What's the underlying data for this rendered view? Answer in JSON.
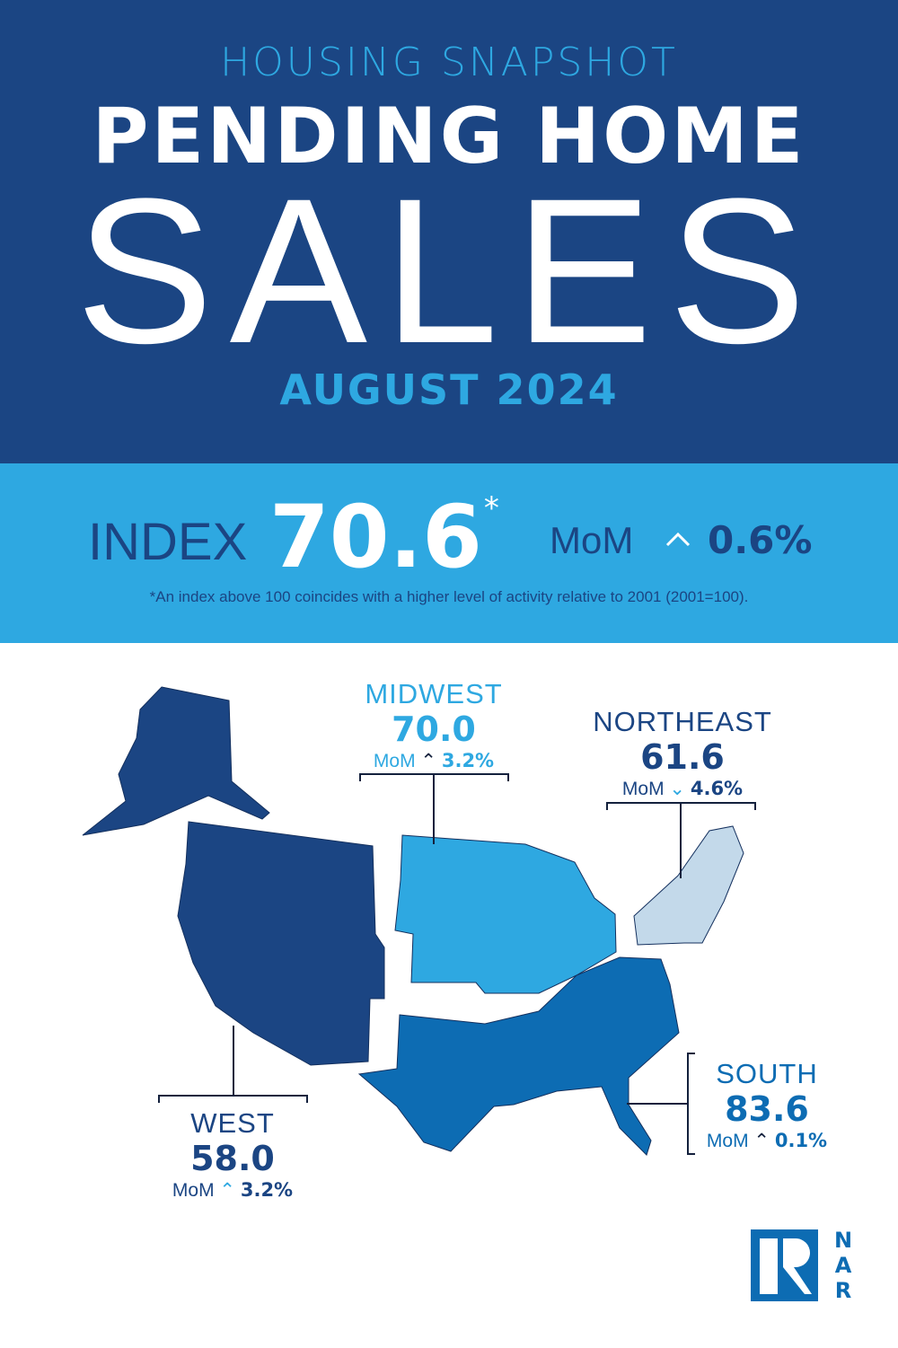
{
  "header": {
    "kicker": "HOUSING SNAPSHOT",
    "title_line1": "PENDING HOME",
    "title_line2": "SALES",
    "period": "AUGUST 2024"
  },
  "index": {
    "label": "INDEX",
    "value": "70.6",
    "asterisk": "*",
    "mom_label": "MoM",
    "mom_direction": "up",
    "mom_arrow": "^",
    "mom_value": "0.6%",
    "footnote": "*An index above 100 coincides with a higher level of activity relative to 2001 (2001=100)."
  },
  "regions": {
    "midwest": {
      "name": "MIDWEST",
      "value": "70.0",
      "mom_label": "MoM",
      "direction": "up",
      "arrow": "^",
      "mom": "3.2%",
      "color": "#2ea8e1"
    },
    "northeast": {
      "name": "NORTHEAST",
      "value": "61.6",
      "mom_label": "MoM",
      "direction": "down",
      "arrow": "v",
      "mom": "4.6%",
      "color": "#c3d9ea"
    },
    "south": {
      "name": "SOUTH",
      "value": "83.6",
      "mom_label": "MoM",
      "direction": "up",
      "arrow": "^",
      "mom": "0.1%",
      "color": "#0d6cb3"
    },
    "west": {
      "name": "WEST",
      "value": "58.0",
      "mom_label": "MoM",
      "direction": "up",
      "arrow": "^",
      "mom": "3.2%",
      "color": "#1b4583"
    }
  },
  "logo": {
    "text": "NAR",
    "letters": [
      "N",
      "A",
      "R"
    ]
  },
  "colors": {
    "navy": "#1b4583",
    "light_blue": "#2ea8e1",
    "mid_blue": "#0d6cb3",
    "pale_blue": "#c3d9ea"
  }
}
